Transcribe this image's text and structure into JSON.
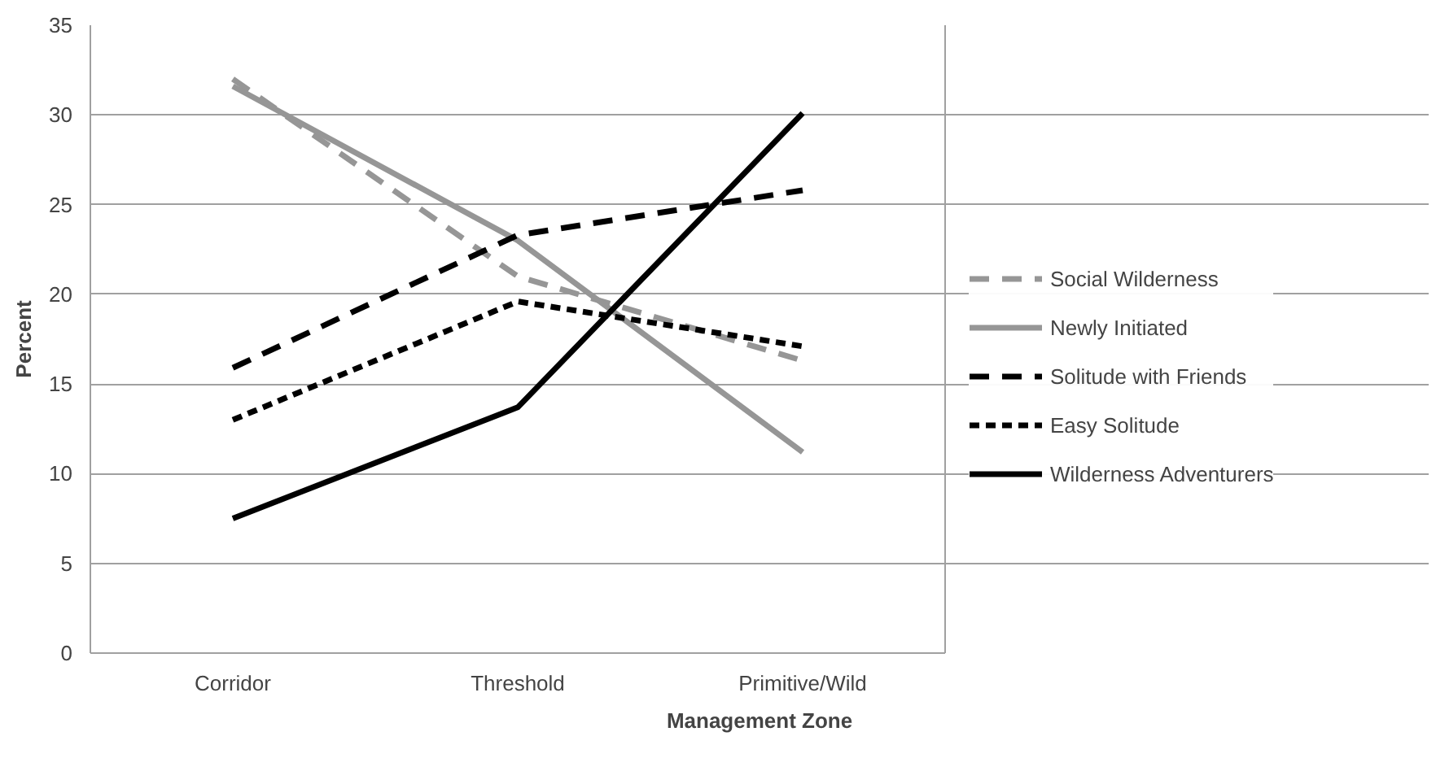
{
  "chart_data": {
    "type": "line",
    "xlabel": "Management Zone",
    "ylabel": "Percent",
    "categories": [
      "Corridor",
      "Threshold",
      "Primitive/Wild"
    ],
    "series": [
      {
        "name": "Social Wilderness",
        "color": "#969696",
        "line_style": "dashed",
        "values": [
          32.0,
          21.0,
          16.3
        ]
      },
      {
        "name": "Newly Initiated",
        "color": "#969696",
        "line_style": "solid",
        "values": [
          31.6,
          23.0,
          11.2
        ]
      },
      {
        "name": "Solitude with Friends",
        "color": "#000000",
        "line_style": "dashed",
        "values": [
          15.9,
          23.3,
          25.8
        ]
      },
      {
        "name": "Easy Solitude",
        "color": "#000000",
        "line_style": "dotted",
        "values": [
          13.0,
          19.6,
          17.1
        ]
      },
      {
        "name": "Wilderness Adventurers",
        "color": "#000000",
        "line_style": "solid",
        "values": [
          7.5,
          13.7,
          30.1
        ]
      }
    ],
    "ylim": [
      0,
      35
    ],
    "yticks": [
      0,
      5,
      10,
      15,
      20,
      25,
      30,
      35
    ],
    "grid": "y",
    "legend": "right"
  }
}
